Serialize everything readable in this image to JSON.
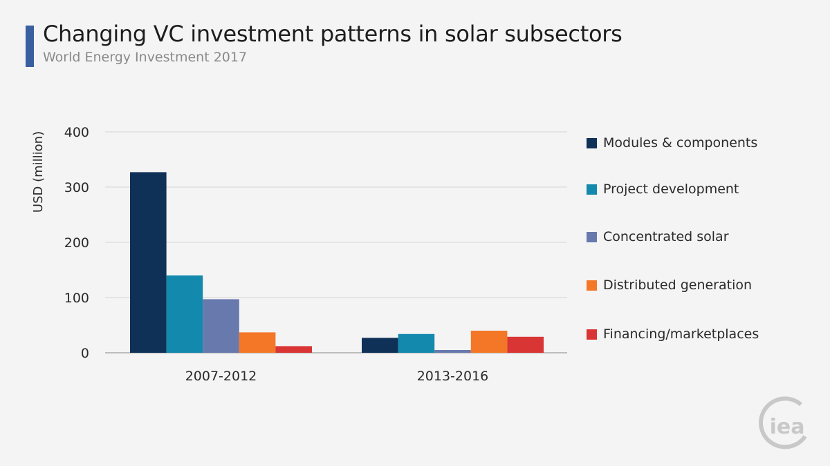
{
  "header": {
    "title": "Changing VC investment patterns in solar subsectors",
    "subtitle": "World Energy Investment 2017",
    "accent_color": "#3a5fa0"
  },
  "logo": {
    "text": "iea",
    "icon": "iea-logo"
  },
  "chart_data": {
    "type": "bar",
    "title": "Changing VC investment patterns in solar subsectors",
    "subtitle": "World Energy Investment 2017",
    "ylabel": "USD (million)",
    "xlabel": "",
    "ylim": [
      0,
      400
    ],
    "yticks": [
      0,
      100,
      200,
      300,
      400
    ],
    "grid": true,
    "legend_position": "right",
    "categories": [
      "2007-2012",
      "2013-2016"
    ],
    "series": [
      {
        "name": "Modules & components",
        "color": "#0f3157",
        "values": [
          327,
          27
        ]
      },
      {
        "name": "Project development",
        "color": "#1389ad",
        "values": [
          140,
          34
        ]
      },
      {
        "name": "Concentrated solar",
        "color": "#6779ad",
        "values": [
          97,
          5
        ]
      },
      {
        "name": "Distributed generation",
        "color": "#f47728",
        "values": [
          37,
          40
        ]
      },
      {
        "name": "Financing/marketplaces",
        "color": "#d93535",
        "values": [
          12,
          29
        ]
      }
    ]
  }
}
